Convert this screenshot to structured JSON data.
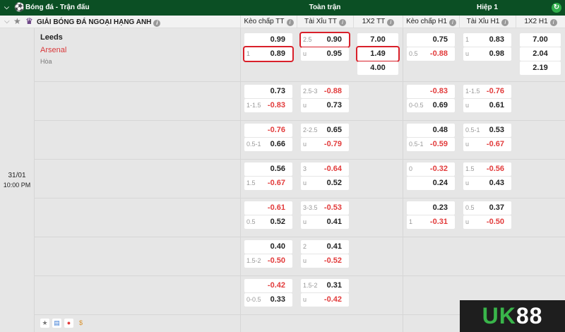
{
  "header": {
    "title": "Bóng đá - Trận đấu",
    "full_match": "Toàn trận",
    "first_half": "Hiệp 1"
  },
  "league": {
    "name": "GIẢI BÓNG ĐÁ NGOẠI HẠNG ANH"
  },
  "columns": [
    "Kèo chấp TT",
    "Tài Xỉu TT",
    "1X2 TT",
    "Kèo chấp H1",
    "Tài Xỉu H1",
    "1X2 H1"
  ],
  "match": {
    "home": "Leeds",
    "away": "Arsenal",
    "draw": "Hòa",
    "date": "31/01",
    "time": "10:00 PM"
  },
  "colors": {
    "header": "#0b4f24",
    "negative": "#e23b3b",
    "highlight": "#d9202a"
  },
  "rows": [
    {
      "kc": [
        [
          "",
          "0.99"
        ],
        [
          "1",
          "0.89"
        ]
      ],
      "tx": [
        [
          "2.5",
          "0.90"
        ],
        [
          "u",
          "0.95"
        ]
      ],
      "x12": [
        "7.00",
        "1.49",
        "4.00"
      ],
      "kch": [
        [
          "",
          "0.75"
        ],
        [
          "0.5",
          "-0.88"
        ]
      ],
      "txh": [
        [
          "1",
          "0.83"
        ],
        [
          "u",
          "0.98"
        ]
      ],
      "x12h": [
        "7.00",
        "2.04",
        "2.19"
      ]
    },
    {
      "kc": [
        [
          "",
          "0.73"
        ],
        [
          "1-1.5",
          "-0.83"
        ]
      ],
      "tx": [
        [
          "2.5-3",
          "-0.88"
        ],
        [
          "u",
          "0.73"
        ]
      ],
      "kch": [
        [
          "",
          "-0.83"
        ],
        [
          "0-0.5",
          "0.69"
        ]
      ],
      "txh": [
        [
          "1-1.5",
          "-0.76"
        ],
        [
          "u",
          "0.61"
        ]
      ]
    },
    {
      "kc": [
        [
          "",
          "-0.76"
        ],
        [
          "0.5-1",
          "0.66"
        ]
      ],
      "tx": [
        [
          "2-2.5",
          "0.65"
        ],
        [
          "u",
          "-0.79"
        ]
      ],
      "kch": [
        [
          "",
          "0.48"
        ],
        [
          "0.5-1",
          "-0.59"
        ]
      ],
      "txh": [
        [
          "0.5-1",
          "0.53"
        ],
        [
          "u",
          "-0.67"
        ]
      ]
    },
    {
      "kc": [
        [
          "",
          "0.56"
        ],
        [
          "1.5",
          "-0.67"
        ]
      ],
      "tx": [
        [
          "3",
          "-0.64"
        ],
        [
          "u",
          "0.52"
        ]
      ],
      "kch": [
        [
          "0",
          "-0.32"
        ],
        [
          "",
          "0.24"
        ]
      ],
      "txh": [
        [
          "1.5",
          "-0.56"
        ],
        [
          "u",
          "0.43"
        ]
      ]
    },
    {
      "kc": [
        [
          "",
          "-0.61"
        ],
        [
          "0.5",
          "0.52"
        ]
      ],
      "tx": [
        [
          "3-3.5",
          "-0.53"
        ],
        [
          "u",
          "0.41"
        ]
      ],
      "kch": [
        [
          "",
          "0.23"
        ],
        [
          "1",
          "-0.31"
        ]
      ],
      "txh": [
        [
          "0.5",
          "0.37"
        ],
        [
          "u",
          "-0.50"
        ]
      ]
    },
    {
      "kc": [
        [
          "",
          "0.40"
        ],
        [
          "1.5-2",
          "-0.50"
        ]
      ],
      "tx": [
        [
          "2",
          "0.41"
        ],
        [
          "u",
          "-0.52"
        ]
      ]
    },
    {
      "kc": [
        [
          "",
          "-0.42"
        ],
        [
          "0-0.5",
          "0.33"
        ]
      ],
      "tx": [
        [
          "1.5-2",
          "0.31"
        ],
        [
          "u",
          "-0.42"
        ]
      ]
    }
  ],
  "highlighted": [
    "kc.1",
    "tx.0",
    "x12.1"
  ],
  "footer_icons": [
    "star-icon",
    "stats-icon",
    "fire-icon",
    "coin-icon"
  ],
  "logo": "UK88"
}
